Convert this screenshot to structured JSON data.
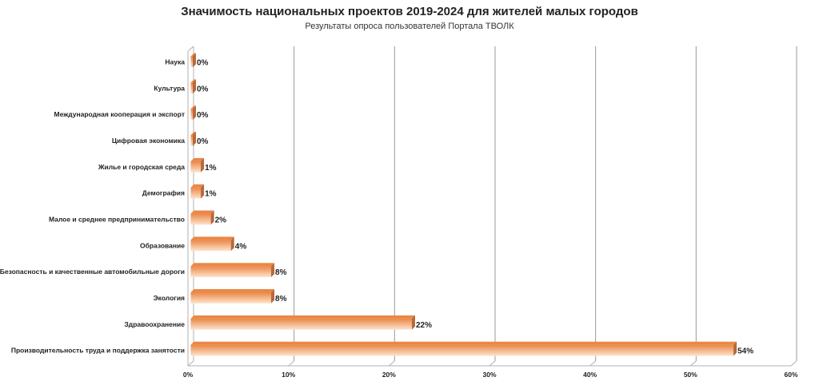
{
  "header": {
    "title": "Значимость национальных проектов 2019-2024 для жителей малых городов",
    "subtitle": "Результаты опроса пользователей Портала ТВОЛК"
  },
  "colors": {
    "bar_light": "#fde3cc",
    "bar_dark": "#ea8745",
    "bar_side": "#b8683a",
    "grid": "#9a9a9a",
    "axis": "#b0b0b0"
  },
  "chart_data": {
    "type": "bar",
    "orientation": "horizontal",
    "title": "Значимость национальных проектов 2019-2024 для жителей малых городов",
    "subtitle": "Результаты опроса пользователей Портала ТВОЛК",
    "categories": [
      "Наука",
      "Культура",
      "Международная кооперация и экспорт",
      "Цифровая экономика",
      "Жилье и городская среда",
      "Демография",
      "Малое и среднее предпринимательство",
      "Образование",
      "Безопасность и качественные автомобильные дороги",
      "Экология",
      "Здравоохранение",
      "Производительность труда и поддержка занятости"
    ],
    "values": [
      0,
      0,
      0,
      0,
      1,
      1,
      2,
      4,
      8,
      8,
      22,
      54
    ],
    "value_labels": [
      "0%",
      "0%",
      "0%",
      "0%",
      "1%",
      "1%",
      "2%",
      "4%",
      "8%",
      "8%",
      "22%",
      "54%"
    ],
    "xlim": [
      0,
      60
    ],
    "x_ticks": [
      0,
      10,
      20,
      30,
      40,
      50,
      60
    ],
    "x_tick_labels": [
      "0%",
      "10%",
      "20%",
      "30%",
      "40%",
      "50%",
      "60%"
    ],
    "grid": true,
    "legend": "none"
  }
}
